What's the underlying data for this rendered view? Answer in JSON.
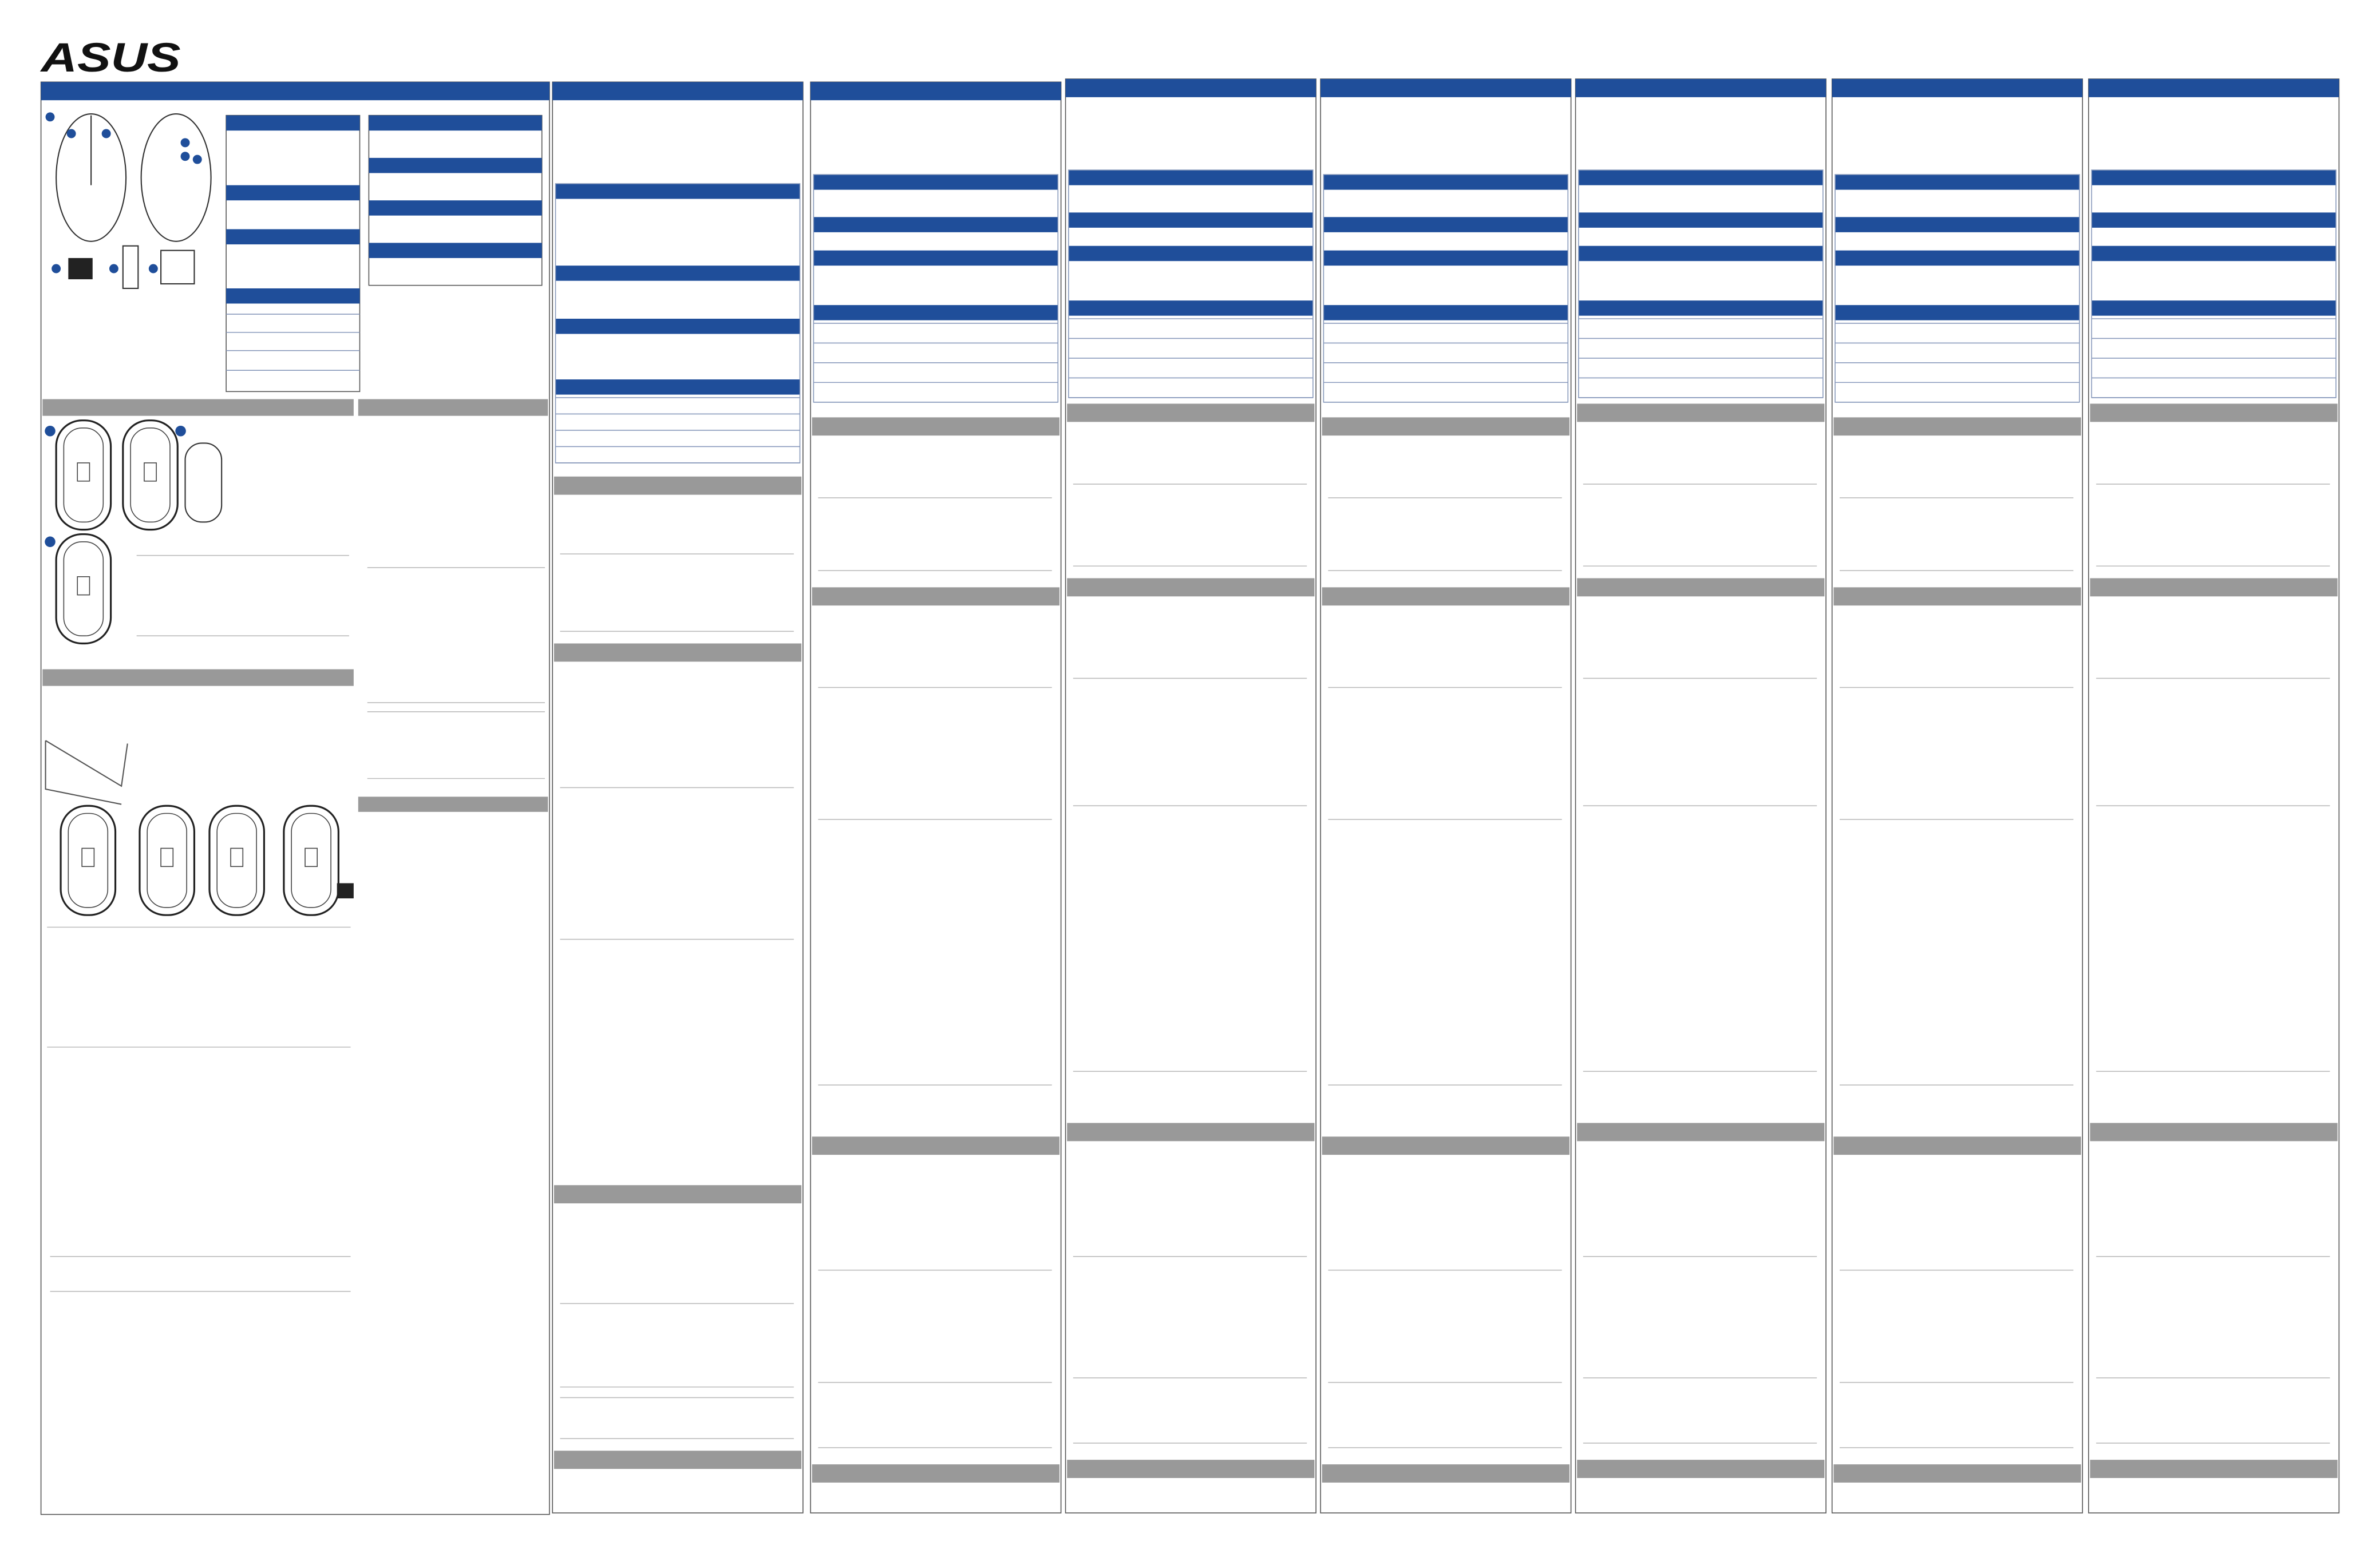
{
  "header": {
    "logo": "ASUS"
  }
}
